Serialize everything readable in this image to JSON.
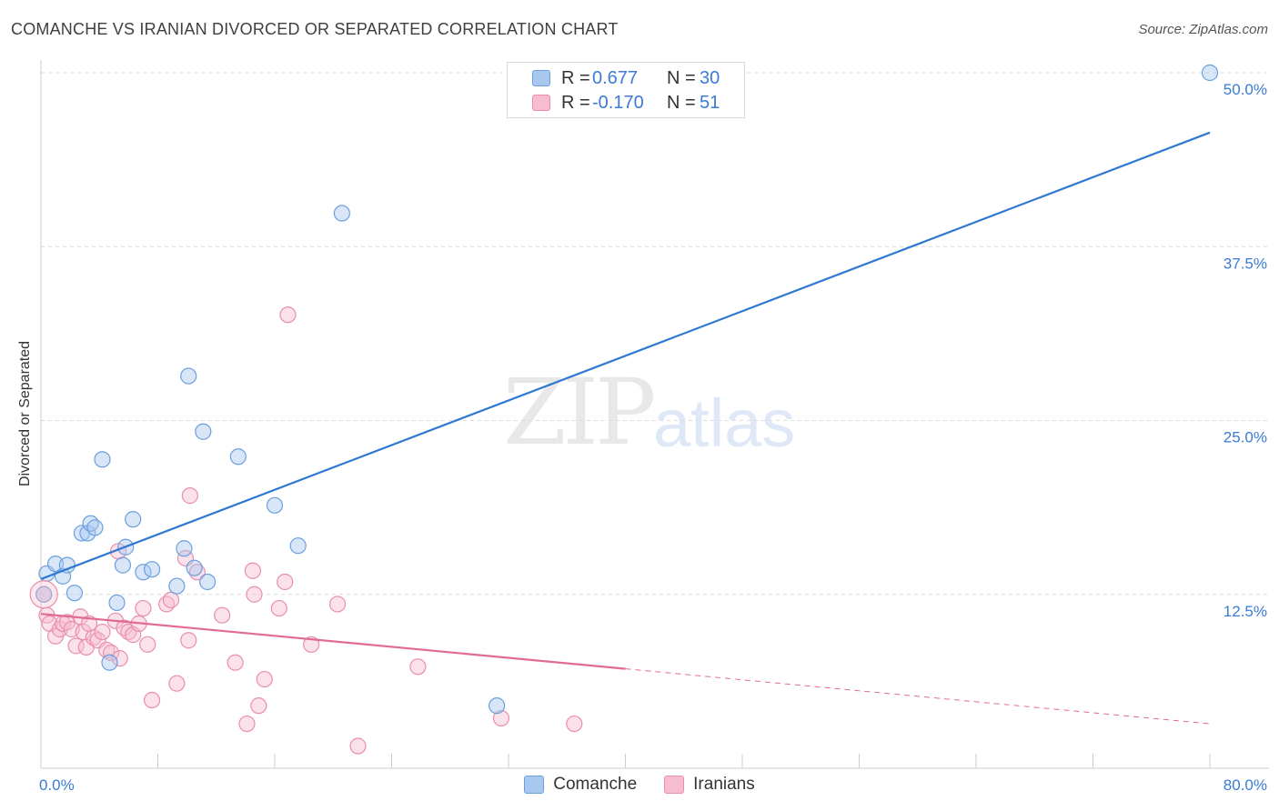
{
  "header": {
    "title": "COMANCHE VS IRANIAN DIVORCED OR SEPARATED CORRELATION CHART",
    "source": "Source: ZipAtlas.com"
  },
  "watermark": {
    "zip": "ZIP",
    "atlas": "atlas"
  },
  "legend_top": {
    "rows": [
      {
        "r_label": "R =",
        "r_value": "0.677",
        "n_label": "N =",
        "n_value": "30"
      },
      {
        "r_label": "R =",
        "r_value": "-0.170",
        "n_label": "N =",
        "n_value": "51"
      }
    ]
  },
  "legend_bottom": {
    "items": [
      {
        "label": "Comanche"
      },
      {
        "label": "Iranians"
      }
    ]
  },
  "colors": {
    "comanche_fill": "#a9c8f0",
    "comanche_stroke": "#6b9fde",
    "comanche_line": "#2f78d2",
    "iranian_fill": "#f7bcd0",
    "iranian_stroke": "#e98fab",
    "iranian_line": "#e26b92",
    "grid": "#dcdcdc",
    "axis_tick_text": "#3a7bd5"
  },
  "chart_data": {
    "type": "scatter",
    "title": "COMANCHE VS IRANIAN DIVORCED OR SEPARATED CORRELATION CHART",
    "xlabel": "",
    "ylabel": "Divorced or Separated",
    "xlim": [
      0,
      80
    ],
    "ylim": [
      0,
      50
    ],
    "x_tick_labels": [
      {
        "value": 0,
        "label": "0.0%"
      },
      {
        "value": 80,
        "label": "80.0%"
      }
    ],
    "y_tick_labels": [
      {
        "value": 12.5,
        "label": "12.5%"
      },
      {
        "value": 25,
        "label": "25.0%"
      },
      {
        "value": 37.5,
        "label": "37.5%"
      },
      {
        "value": 50,
        "label": "50.0%"
      }
    ],
    "x_minor_ticks": [
      0,
      8,
      16,
      24,
      32,
      40,
      48,
      56,
      64,
      72,
      80
    ],
    "series": [
      {
        "name": "Comanche",
        "trend": {
          "x0": 0,
          "y0": 13.6,
          "x1": 80,
          "y1": 45.7,
          "dashed_from": null
        },
        "points": [
          [
            0.4,
            14.0
          ],
          [
            1.0,
            14.7
          ],
          [
            1.5,
            13.8
          ],
          [
            1.8,
            14.6
          ],
          [
            2.3,
            12.6
          ],
          [
            2.8,
            16.9
          ],
          [
            3.2,
            16.9
          ],
          [
            3.4,
            17.6
          ],
          [
            3.7,
            17.3
          ],
          [
            4.2,
            22.2
          ],
          [
            4.7,
            7.6
          ],
          [
            5.2,
            11.9
          ],
          [
            5.6,
            14.6
          ],
          [
            5.8,
            15.9
          ],
          [
            6.3,
            17.9
          ],
          [
            7.0,
            14.1
          ],
          [
            7.6,
            14.3
          ],
          [
            9.3,
            13.1
          ],
          [
            9.8,
            15.8
          ],
          [
            10.1,
            28.2
          ],
          [
            10.5,
            14.4
          ],
          [
            11.1,
            24.2
          ],
          [
            11.4,
            13.4
          ],
          [
            13.5,
            22.4
          ],
          [
            16.0,
            18.9
          ],
          [
            17.6,
            16.0
          ],
          [
            20.6,
            39.9
          ],
          [
            31.2,
            4.5
          ],
          [
            80.0,
            50.0
          ],
          [
            0.2,
            12.5
          ]
        ]
      },
      {
        "name": "Iranians",
        "trend": {
          "x0": 0,
          "y0": 11.1,
          "x1": 80,
          "y1": 3.2,
          "dashed_from": 40
        },
        "points": [
          [
            0.2,
            12.5
          ],
          [
            0.4,
            11.0
          ],
          [
            0.6,
            10.4
          ],
          [
            1.0,
            9.5
          ],
          [
            1.3,
            10.0
          ],
          [
            1.5,
            10.4
          ],
          [
            1.8,
            10.5
          ],
          [
            2.1,
            10.0
          ],
          [
            2.4,
            8.8
          ],
          [
            2.7,
            10.9
          ],
          [
            2.9,
            9.8
          ],
          [
            3.1,
            8.7
          ],
          [
            3.3,
            10.4
          ],
          [
            3.6,
            9.4
          ],
          [
            3.9,
            9.2
          ],
          [
            4.2,
            9.8
          ],
          [
            4.5,
            8.5
          ],
          [
            4.8,
            8.3
          ],
          [
            5.1,
            10.6
          ],
          [
            5.4,
            7.9
          ],
          [
            5.7,
            10.1
          ],
          [
            6.0,
            9.8
          ],
          [
            6.3,
            9.6
          ],
          [
            6.7,
            10.4
          ],
          [
            7.0,
            11.5
          ],
          [
            7.3,
            8.9
          ],
          [
            7.6,
            4.9
          ],
          [
            8.6,
            11.8
          ],
          [
            8.9,
            12.1
          ],
          [
            9.3,
            6.1
          ],
          [
            9.9,
            15.1
          ],
          [
            10.1,
            9.2
          ],
          [
            10.2,
            19.6
          ],
          [
            10.7,
            14.1
          ],
          [
            12.4,
            11.0
          ],
          [
            13.3,
            7.6
          ],
          [
            14.1,
            3.2
          ],
          [
            14.5,
            14.2
          ],
          [
            14.6,
            12.5
          ],
          [
            14.9,
            4.5
          ],
          [
            15.3,
            6.4
          ],
          [
            16.3,
            11.5
          ],
          [
            16.7,
            13.4
          ],
          [
            16.9,
            32.6
          ],
          [
            18.5,
            8.9
          ],
          [
            20.3,
            11.8
          ],
          [
            21.7,
            1.6
          ],
          [
            25.8,
            7.3
          ],
          [
            31.5,
            3.6
          ],
          [
            36.5,
            3.2
          ],
          [
            5.3,
            15.6
          ]
        ]
      }
    ]
  }
}
